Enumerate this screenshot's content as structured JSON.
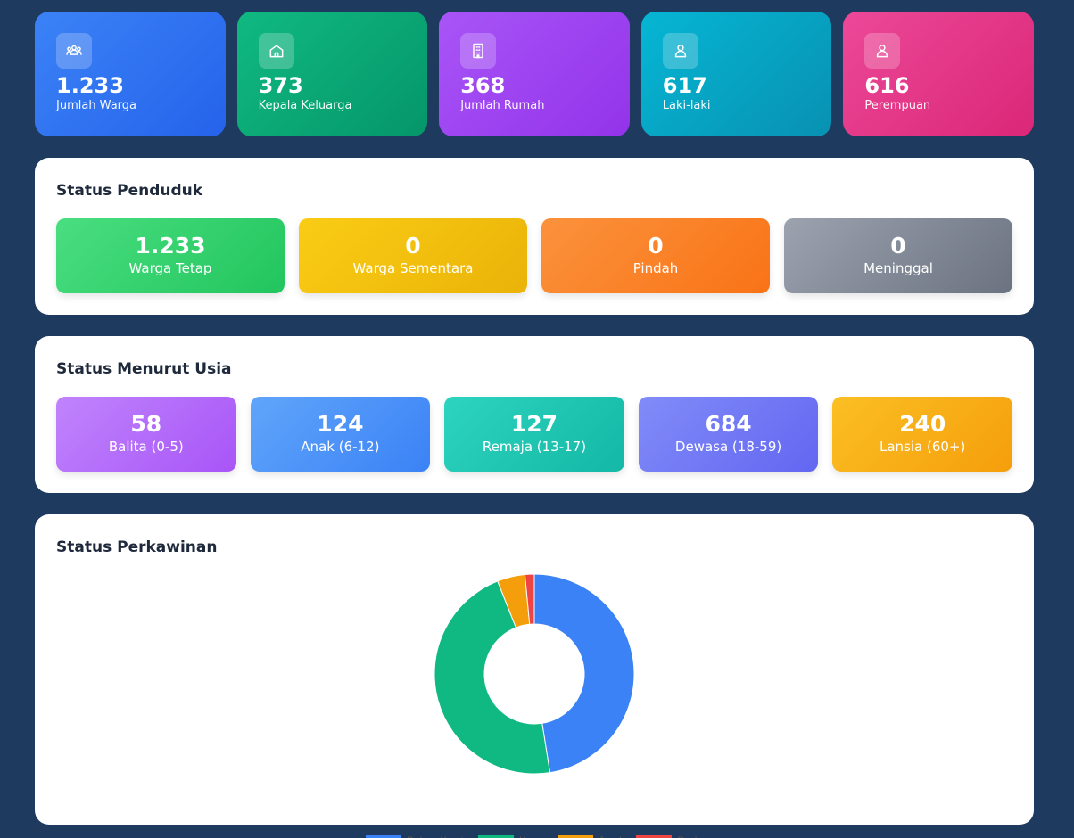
{
  "summary": [
    {
      "value": "1.233",
      "label": "Jumlah Warga",
      "icon": "users-icon"
    },
    {
      "value": "373",
      "label": "Kepala Keluarga",
      "icon": "home-icon"
    },
    {
      "value": "368",
      "label": "Jumlah Rumah",
      "icon": "building-icon"
    },
    {
      "value": "617",
      "label": "Laki-laki",
      "icon": "user-icon"
    },
    {
      "value": "616",
      "label": "Perempuan",
      "icon": "user-icon"
    }
  ],
  "status_penduduk": {
    "title": "Status Penduduk",
    "items": [
      {
        "value": "1.233",
        "label": "Warga Tetap"
      },
      {
        "value": "0",
        "label": "Warga Sementara"
      },
      {
        "value": "0",
        "label": "Pindah"
      },
      {
        "value": "0",
        "label": "Meninggal"
      }
    ]
  },
  "status_usia": {
    "title": "Status Menurut Usia",
    "items": [
      {
        "value": "58",
        "label": "Balita (0-5)"
      },
      {
        "value": "124",
        "label": "Anak (6-12)"
      },
      {
        "value": "127",
        "label": "Remaja (13-17)"
      },
      {
        "value": "684",
        "label": "Dewasa (18-59)"
      },
      {
        "value": "240",
        "label": "Lansia (60+)"
      }
    ]
  },
  "status_perkawinan": {
    "title": "Status Perkawinan"
  },
  "chart_data": {
    "type": "pie",
    "categories": [
      "Belum Kawin",
      "Kawin",
      "Janda",
      "Duda"
    ],
    "values": [
      47.5,
      46.5,
      4.5,
      1.5
    ],
    "colors": [
      "#3b82f6",
      "#10b981",
      "#f59e0b",
      "#ef4444"
    ],
    "legend": "bottom"
  }
}
